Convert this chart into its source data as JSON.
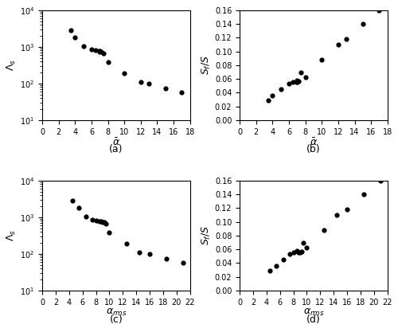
{
  "a_alpha_bar": [
    3.5,
    4.0,
    5.0,
    6.0,
    6.5,
    7.0,
    7.0,
    7.0,
    7.2,
    7.5,
    8.0,
    10.0,
    12.0,
    13.0,
    15.0,
    17.0
  ],
  "a_lambda_s": [
    2800,
    1800,
    1050,
    850,
    800,
    780,
    760,
    740,
    720,
    680,
    380,
    190,
    110,
    100,
    75,
    58
  ],
  "b_alpha_bar": [
    3.5,
    4.0,
    5.0,
    6.0,
    6.5,
    7.0,
    7.0,
    7.0,
    7.2,
    7.5,
    8.0,
    10.0,
    12.0,
    13.0,
    15.0,
    17.0
  ],
  "b_sf_s": [
    0.029,
    0.036,
    0.045,
    0.053,
    0.055,
    0.058,
    0.055,
    0.056,
    0.057,
    0.069,
    0.063,
    0.088,
    0.11,
    0.118,
    0.14,
    0.16
  ],
  "c_alpha_rms": [
    4.5,
    5.5,
    6.5,
    7.5,
    8.0,
    8.5,
    8.8,
    9.0,
    9.2,
    9.5,
    10.0,
    12.5,
    14.5,
    16.0,
    18.5,
    21.0
  ],
  "c_lambda_s": [
    2800,
    1800,
    1050,
    850,
    800,
    780,
    760,
    740,
    720,
    680,
    380,
    190,
    110,
    100,
    75,
    58
  ],
  "d_alpha_rms": [
    4.5,
    5.5,
    6.5,
    7.5,
    8.0,
    8.5,
    8.8,
    9.0,
    9.2,
    9.5,
    10.0,
    12.5,
    14.5,
    16.0,
    18.5,
    21.0
  ],
  "d_sf_s": [
    0.029,
    0.036,
    0.045,
    0.053,
    0.055,
    0.058,
    0.055,
    0.056,
    0.057,
    0.069,
    0.063,
    0.088,
    0.11,
    0.118,
    0.14,
    0.16
  ],
  "marker": "o",
  "marker_color": "black",
  "marker_size": 4.5,
  "background_color": "white",
  "a_xlabel": "$\\bar{\\alpha}$",
  "b_xlabel": "$\\bar{\\alpha}$",
  "c_xlabel": "$\\alpha_{rms}$",
  "d_xlabel": "$\\alpha_{rms}$",
  "a_ylabel": "$\\Lambda_s$",
  "b_ylabel": "$S_f/S$",
  "c_ylabel": "$\\Lambda_s$",
  "d_ylabel": "$S_f/S$",
  "a_label": "(a)",
  "b_label": "(b)",
  "c_label": "(c)",
  "d_label": "(d)",
  "a_xlim": [
    0,
    18
  ],
  "b_xlim": [
    0,
    18
  ],
  "c_xlim": [
    0,
    22
  ],
  "d_xlim": [
    0,
    22
  ],
  "a_ylim": [
    10,
    10000
  ],
  "b_ylim": [
    0,
    0.16
  ],
  "c_ylim": [
    10,
    10000
  ],
  "d_ylim": [
    0,
    0.16
  ],
  "a_xticks": [
    0,
    2,
    4,
    6,
    8,
    10,
    12,
    14,
    16,
    18
  ],
  "b_xticks": [
    0,
    2,
    4,
    6,
    8,
    10,
    12,
    14,
    16,
    18
  ],
  "c_xticks": [
    0,
    2,
    4,
    6,
    8,
    10,
    12,
    14,
    16,
    18,
    20,
    22
  ],
  "d_xticks": [
    0,
    2,
    4,
    6,
    8,
    10,
    12,
    14,
    16,
    18,
    20,
    22
  ],
  "b_yticks": [
    0,
    0.02,
    0.04,
    0.06,
    0.08,
    0.1,
    0.12,
    0.14,
    0.16
  ],
  "d_yticks": [
    0,
    0.02,
    0.04,
    0.06,
    0.08,
    0.1,
    0.12,
    0.14,
    0.16
  ],
  "tick_labelsize": 7,
  "axis_labelsize": 9,
  "panel_labelsize": 9
}
